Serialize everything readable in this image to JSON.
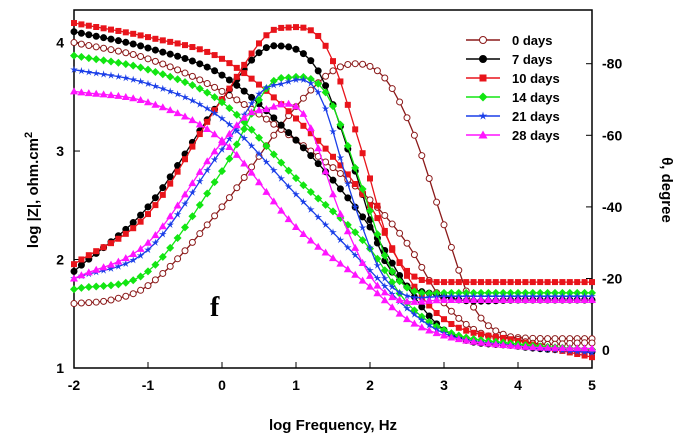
{
  "chart_data": {
    "type": "line",
    "panel_label": "f",
    "xlabel": "log Frequency, Hz",
    "ylabel_left": "log |Z|, ohm.cm",
    "ylabel_left_superscript": "2",
    "ylabel_right": "θ, degree",
    "xlim": [
      -2,
      5
    ],
    "ylim_left": [
      1,
      4.3
    ],
    "ylim_right": [
      5,
      -95
    ],
    "x_ticks": [
      "-2",
      "-1",
      "0",
      "1",
      "2",
      "3",
      "4",
      "5"
    ],
    "y_left_ticks": [
      "1",
      "2",
      "3",
      "4"
    ],
    "y_right_ticks": [
      "0",
      "-20",
      "-40",
      "-60",
      "-80"
    ],
    "legend_position": "top-right",
    "grid": false,
    "series": [
      {
        "name": "0 days",
        "color": "#8B1A1A",
        "marker": "circle-open",
        "modulus": {
          "x": [
            -2,
            -1,
            0,
            1,
            2,
            2.5,
            3,
            3.5,
            4,
            5
          ],
          "y": [
            4.0,
            3.85,
            3.55,
            3.1,
            2.55,
            2.15,
            1.6,
            1.32,
            1.28,
            1.27
          ]
        },
        "phase": {
          "x": [
            -2,
            -1.5,
            -1,
            0,
            1,
            1.5,
            1.8,
            2.2,
            2.6,
            3,
            3.4,
            4,
            5
          ],
          "y": [
            -13,
            -14,
            -18,
            -40,
            -68,
            -78,
            -80,
            -76,
            -60,
            -35,
            -12,
            -3,
            -2
          ]
        }
      },
      {
        "name": "7 days",
        "color": "#000000",
        "marker": "circle",
        "modulus": {
          "x": [
            -2,
            -1,
            0,
            1,
            2,
            2.5,
            3,
            4,
            5
          ],
          "y": [
            4.1,
            3.95,
            3.7,
            3.1,
            2.3,
            1.75,
            1.35,
            1.2,
            1.15
          ]
        },
        "phase": {
          "x": [
            -2,
            -1,
            0,
            0.7,
            1.3,
            1.8,
            2.2,
            3,
            4,
            5
          ],
          "y": [
            -22,
            -40,
            -70,
            -85,
            -78,
            -50,
            -25,
            -15,
            -14,
            -14
          ]
        }
      },
      {
        "name": "10 days",
        "color": "#E8141B",
        "marker": "square",
        "modulus": {
          "x": [
            -2,
            -1,
            0,
            1,
            2,
            2.5,
            3,
            4,
            5
          ],
          "y": [
            4.18,
            4.05,
            3.85,
            3.3,
            2.5,
            1.85,
            1.45,
            1.25,
            1.1
          ]
        },
        "phase": {
          "x": [
            -2,
            -1,
            0,
            0.8,
            1.4,
            1.9,
            2.3,
            3,
            4,
            5
          ],
          "y": [
            -24,
            -38,
            -70,
            -90,
            -85,
            -55,
            -28,
            -19,
            -19,
            -19
          ]
        }
      },
      {
        "name": "14 days",
        "color": "#12E612",
        "marker": "diamond",
        "modulus": {
          "x": [
            -2,
            -1,
            0,
            1,
            2,
            2.5,
            3,
            4,
            5
          ],
          "y": [
            3.88,
            3.75,
            3.45,
            2.75,
            2.1,
            1.6,
            1.35,
            1.22,
            1.17
          ]
        },
        "phase": {
          "x": [
            -2,
            -1,
            0,
            0.8,
            1.4,
            1.9,
            2.3,
            3,
            4,
            5
          ],
          "y": [
            -17,
            -22,
            -50,
            -76,
            -72,
            -45,
            -22,
            -16,
            -16,
            -16
          ]
        }
      },
      {
        "name": "21 days",
        "color": "#1A3EE8",
        "marker": "star",
        "modulus": {
          "x": [
            -2,
            -1,
            0,
            1,
            2,
            2.5,
            3,
            4,
            5
          ],
          "y": [
            3.75,
            3.62,
            3.3,
            2.6,
            1.9,
            1.55,
            1.32,
            1.2,
            1.14
          ]
        },
        "phase": {
          "x": [
            -2,
            -1,
            0,
            0.7,
            1.3,
            1.8,
            2.2,
            3,
            4,
            5
          ],
          "y": [
            -20,
            -28,
            -56,
            -74,
            -72,
            -40,
            -20,
            -15,
            -15,
            -15
          ]
        }
      },
      {
        "name": "28 days",
        "color": "#FF14FF",
        "marker": "triangle",
        "modulus": {
          "x": [
            -2,
            -1,
            0,
            1,
            2,
            2.5,
            3,
            4,
            5
          ],
          "y": [
            3.55,
            3.45,
            3.1,
            2.3,
            1.75,
            1.45,
            1.3,
            1.2,
            1.18
          ]
        },
        "phase": {
          "x": [
            -2,
            -1,
            0,
            0.5,
            1.1,
            1.6,
            2.1,
            3,
            4,
            5
          ],
          "y": [
            -20,
            -30,
            -58,
            -67,
            -66,
            -38,
            -18,
            -14,
            -14,
            -14
          ]
        }
      }
    ]
  }
}
